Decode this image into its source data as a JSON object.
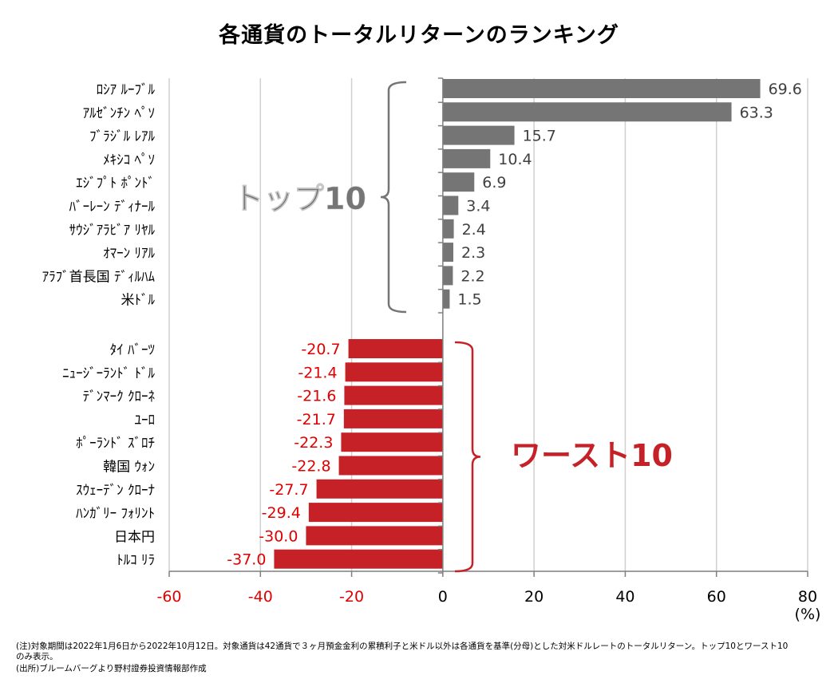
{
  "chart_data": {
    "type": "bar",
    "orientation": "horizontal",
    "title": "各通貨のトータルリターンのランキング",
    "unit_label": "(%)",
    "xlim": [
      -60,
      80
    ],
    "x_ticks": [
      -60,
      -40,
      -20,
      0,
      20,
      40,
      60,
      80
    ],
    "grid": true,
    "series": [
      {
        "label": "トップ10",
        "color": "#757575",
        "categories": [
          "ﾛｼｱ ﾙｰﾌﾞﾙ",
          "ｱﾙｾﾞﾝﾁﾝ ﾍﾟｿ",
          "ﾌﾞﾗｼﾞﾙ ﾚｱﾙ",
          "ﾒｷｼｺ ﾍﾟｿ",
          "ｴｼﾞﾌﾟﾄ ﾎﾟﾝﾄﾞ",
          "ﾊﾞｰﾚｰﾝ ﾃﾞｨﾅｰﾙ",
          "ｻｳｼﾞｱﾗﾋﾞｱ ﾘﾔﾙ",
          "ｵﾏｰﾝ ﾘｱﾙ",
          "ｱﾗﾌﾞ首長国 ﾃﾞｨﾙﾊﾑ",
          "米ﾄﾞﾙ"
        ],
        "values": [
          69.6,
          63.3,
          15.7,
          10.4,
          6.9,
          3.4,
          2.4,
          2.3,
          2.2,
          1.5
        ],
        "value_labels": [
          "69.6",
          "63.3",
          "15.7",
          "10.4",
          "6.9",
          "3.4",
          "2.4",
          "2.3",
          "2.2",
          "1.5"
        ],
        "label_color": "#404040"
      },
      {
        "label": "ワースト10",
        "color": "#c62127",
        "categories": [
          "ﾀｲ ﾊﾞｰﾂ",
          "ﾆｭｰｼﾞｰﾗﾝﾄﾞ ﾄﾞﾙ",
          "ﾃﾞﾝﾏｰｸ ｸﾛｰﾈ",
          "ﾕｰﾛ",
          "ﾎﾟｰﾗﾝﾄﾞ ｽﾞﾛﾁ",
          "韓国 ｳｫﾝ",
          "ｽｳｪｰﾃﾞﾝ ｸﾛｰﾅ",
          "ﾊﾝｶﾞﾘｰ ﾌｫﾘﾝﾄ",
          "日本円",
          "ﾄﾙｺ ﾘﾗ"
        ],
        "values": [
          -20.7,
          -21.4,
          -21.6,
          -21.7,
          -22.3,
          -22.8,
          -27.7,
          -29.4,
          -30.0,
          -37.0
        ],
        "value_labels": [
          "-20.7",
          "-21.4",
          "-21.6",
          "-21.7",
          "-22.3",
          "-22.8",
          "-27.7",
          "-29.4",
          "-30.0",
          "-37.0"
        ],
        "label_color": "#e00000"
      }
    ],
    "tick_colors": {
      "negative": "#e00000",
      "non_negative": "#000000"
    }
  },
  "notes": [
    "(注)対象期間は2022年1月6日から2022年10月12日。対象通貨は42通貨で３ヶ月預金金利の累積利子と米ドル以外は各通貨を基準(分母)とした対米ドルレートのトータルリターン。トップ10とワースト10",
    "のみ表示。",
    "(出所)ブルームバーグより野村證券投資情報部作成"
  ]
}
